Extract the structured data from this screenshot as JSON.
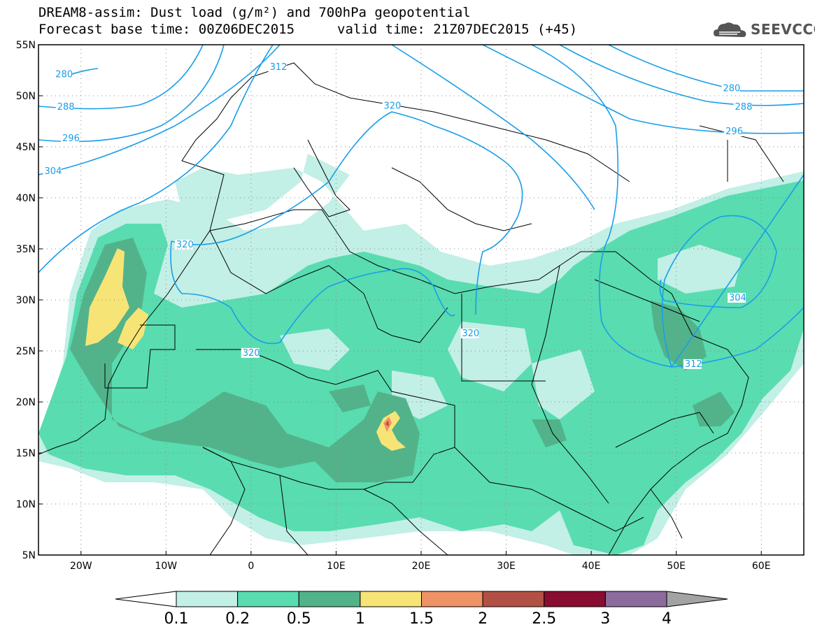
{
  "title": {
    "line1": "DREAM8-assim: Dust load (g/m²) and 700hPa geopotential",
    "line2": "Forecast base time: 00Z06DEC2015",
    "line2b": "valid time: 21Z07DEC2015 (+45)"
  },
  "logo": {
    "text": "SEEVCCC",
    "icon": "cloud-icon"
  },
  "map": {
    "lon_range": [
      -25,
      65
    ],
    "lat_range": [
      5,
      55
    ],
    "lon_ticks": [
      {
        "lon": -20,
        "label": "20W"
      },
      {
        "lon": -10,
        "label": "10W"
      },
      {
        "lon": 0,
        "label": "0"
      },
      {
        "lon": 10,
        "label": "10E"
      },
      {
        "lon": 20,
        "label": "20E"
      },
      {
        "lon": 30,
        "label": "30E"
      },
      {
        "lon": 40,
        "label": "40E"
      },
      {
        "lon": 50,
        "label": "50E"
      },
      {
        "lon": 60,
        "label": "60E"
      }
    ],
    "lat_ticks": [
      {
        "lat": 55,
        "label": "55N"
      },
      {
        "lat": 50,
        "label": "50N"
      },
      {
        "lat": 45,
        "label": "45N"
      },
      {
        "lat": 40,
        "label": "40N"
      },
      {
        "lat": 35,
        "label": "35N"
      },
      {
        "lat": 30,
        "label": "30N"
      },
      {
        "lat": 25,
        "label": "25N"
      },
      {
        "lat": 20,
        "label": "20N"
      },
      {
        "lat": 15,
        "label": "15N"
      },
      {
        "lat": 10,
        "label": "10N"
      },
      {
        "lat": 5,
        "label": "5N"
      }
    ],
    "contour_color": "#1a9ee8",
    "contour_labels": [
      {
        "text": "280",
        "lon": -23,
        "lat": 51.9
      },
      {
        "text": "288",
        "lon": -22.8,
        "lat": 48.7
      },
      {
        "text": "296",
        "lon": -22.2,
        "lat": 45.6
      },
      {
        "text": "304",
        "lon": -24.3,
        "lat": 42.4
      },
      {
        "text": "312",
        "lon": 2.2,
        "lat": 52.6
      },
      {
        "text": "320",
        "lon": 15.6,
        "lat": 48.8
      },
      {
        "text": "320",
        "lon": -8.8,
        "lat": 35.2
      },
      {
        "text": "320",
        "lon": 24.8,
        "lat": 26.5
      },
      {
        "text": "320",
        "lon": -1,
        "lat": 24.6
      },
      {
        "text": "304",
        "lon": 56.2,
        "lat": 30
      },
      {
        "text": "312",
        "lon": 51,
        "lat": 23.5
      },
      {
        "text": "280",
        "lon": 55.5,
        "lat": 50.5
      },
      {
        "text": "288",
        "lon": 56.9,
        "lat": 48.7
      },
      {
        "text": "296",
        "lon": 55.8,
        "lat": 46.3
      }
    ]
  },
  "colorbar": {
    "levels": [
      "0.1",
      "0.2",
      "0.5",
      "1",
      "1.5",
      "2",
      "2.5",
      "3",
      "4"
    ],
    "colors": [
      "#ffffff",
      "#c2efe6",
      "#59dcb0",
      "#52b38b",
      "#f7e476",
      "#ef9266",
      "#b35045",
      "#880d31",
      "#8c6b9d",
      "#a3a3a3"
    ]
  }
}
